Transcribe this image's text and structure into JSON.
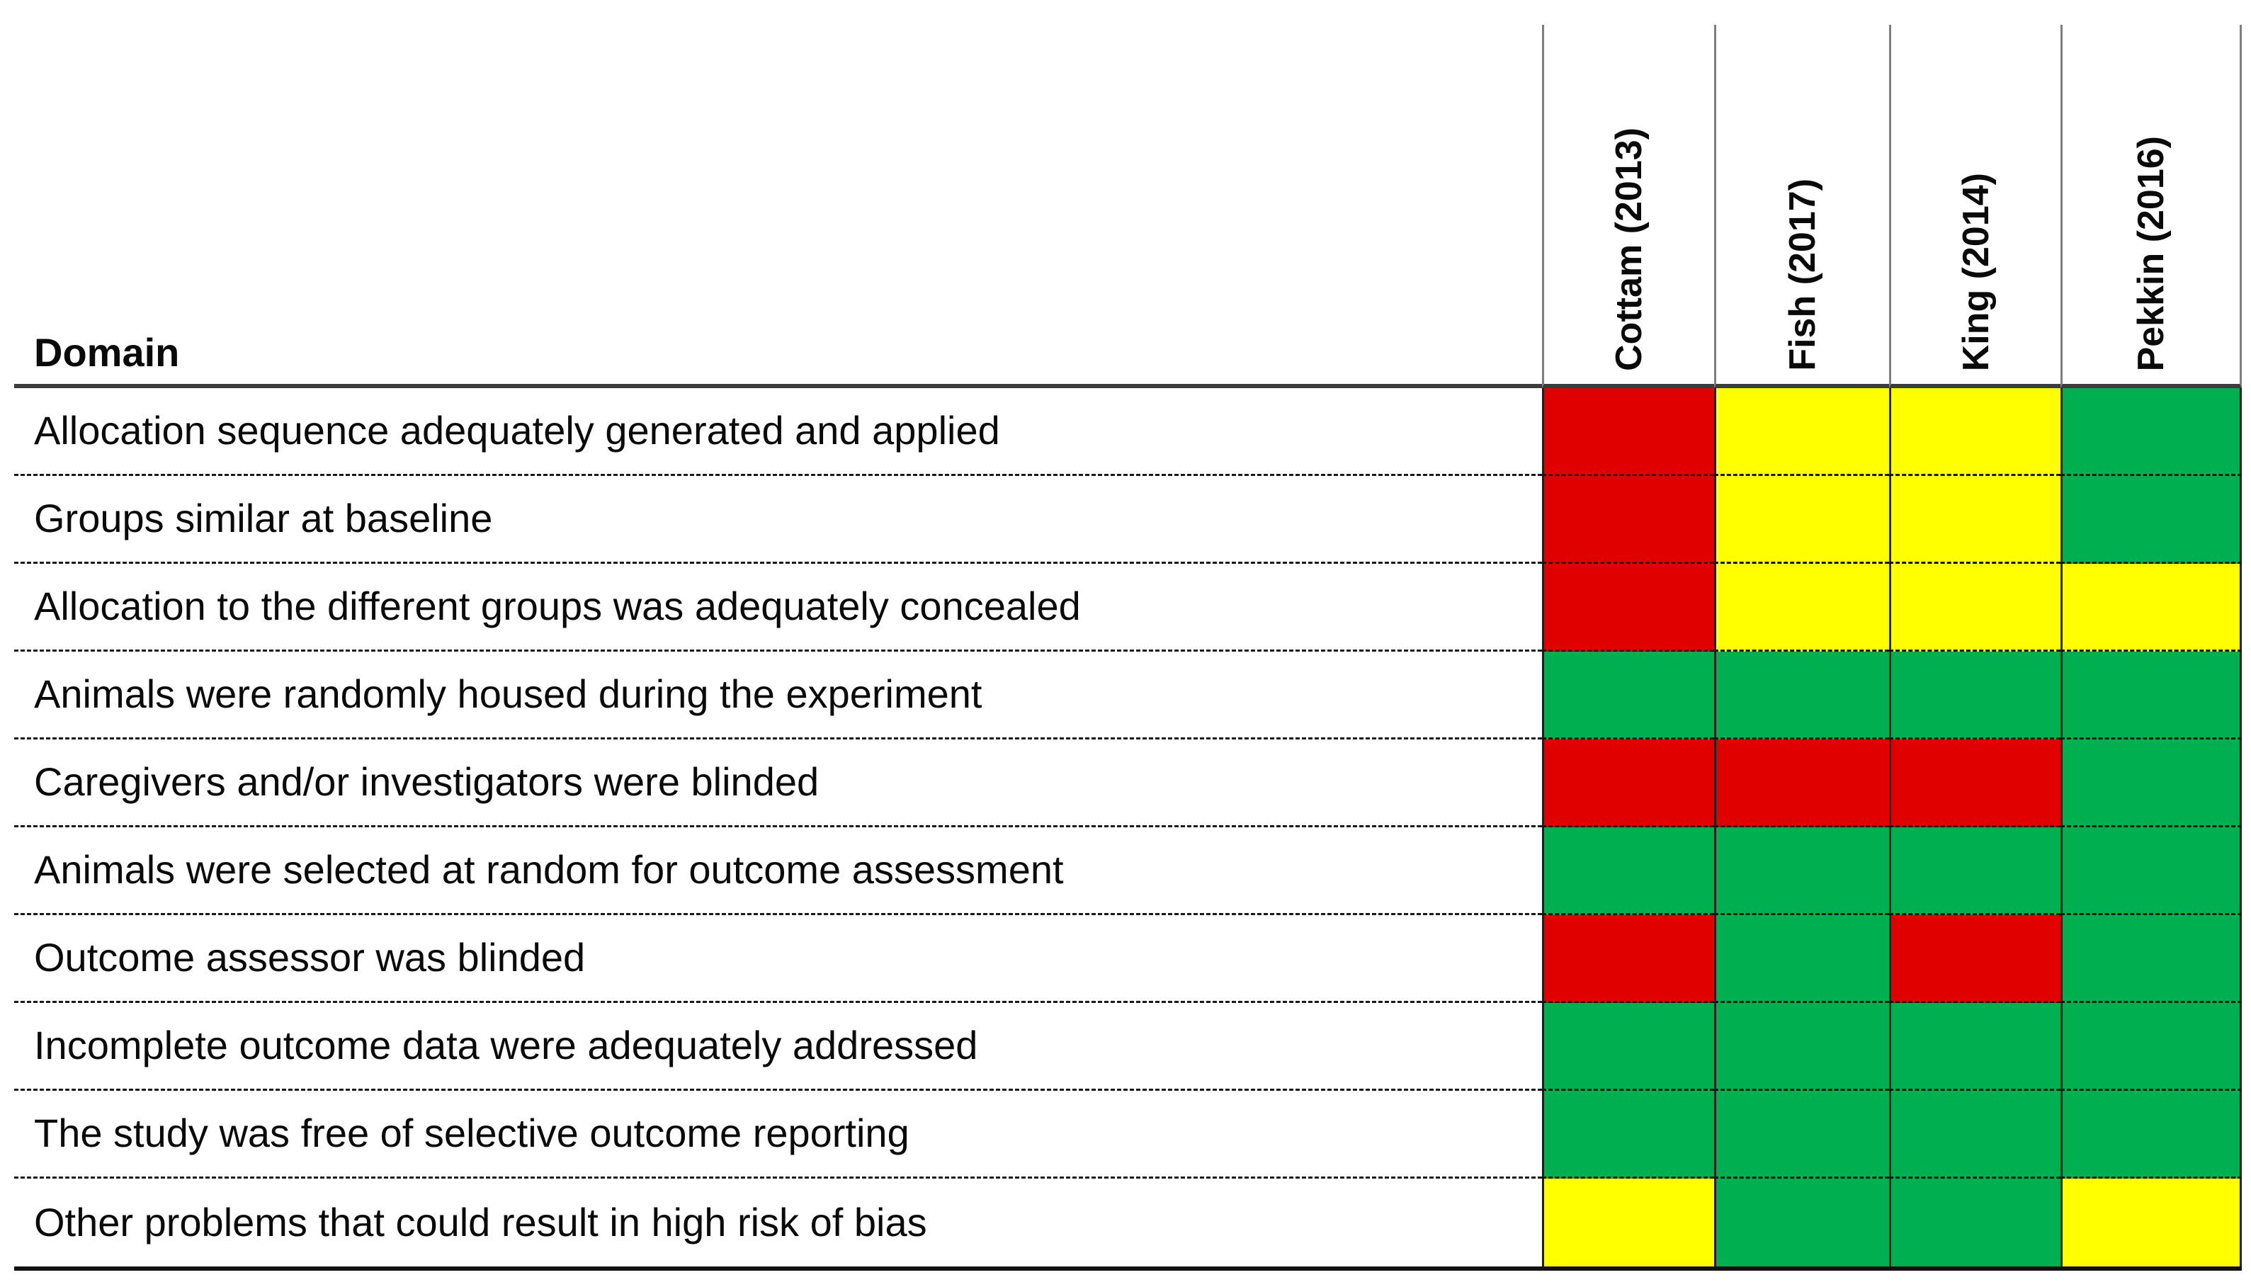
{
  "chart_data": {
    "type": "heatmap",
    "title": "",
    "corner_header": "Domain",
    "columns": [
      "Cottam (2013)",
      "Fish (2017)",
      "King (2014)",
      "Pekkin (2016)"
    ],
    "rows": [
      "Allocation sequence adequately generated and applied",
      "Groups similar at baseline",
      "Allocation to the different groups was adequately concealed",
      "Animals were randomly housed during the experiment",
      "Caregivers and/or investigators were blinded",
      "Animals were selected at random for outcome assessment",
      "Outcome assessor was blinded",
      "Incomplete outcome data were adequately addressed",
      "The study was free of selective outcome reporting",
      "Other problems that could result in high risk of bias"
    ],
    "cell_colors": [
      [
        "red",
        "yellow",
        "yellow",
        "green"
      ],
      [
        "red",
        "yellow",
        "yellow",
        "green"
      ],
      [
        "red",
        "yellow",
        "yellow",
        "yellow"
      ],
      [
        "green",
        "green",
        "green",
        "green"
      ],
      [
        "red",
        "red",
        "red",
        "green"
      ],
      [
        "green",
        "green",
        "green",
        "green"
      ],
      [
        "red",
        "green",
        "red",
        "green"
      ],
      [
        "green",
        "green",
        "green",
        "green"
      ],
      [
        "green",
        "green",
        "green",
        "green"
      ],
      [
        "yellow",
        "green",
        "green",
        "yellow"
      ]
    ],
    "palette": {
      "red": "#E00000",
      "yellow": "#FFFF00",
      "green": "#00B050"
    },
    "layout_hints": {
      "row_separators": "thin dashed black lines",
      "header_separator": "thick dark solid line",
      "bottom_rule": "thick black solid line",
      "column_rules": "gray vertical lines in header, dark vertical lines in cell area",
      "column_header_orientation": "rotated 90deg, reading bottom-to-top",
      "legend_position": "none"
    }
  }
}
